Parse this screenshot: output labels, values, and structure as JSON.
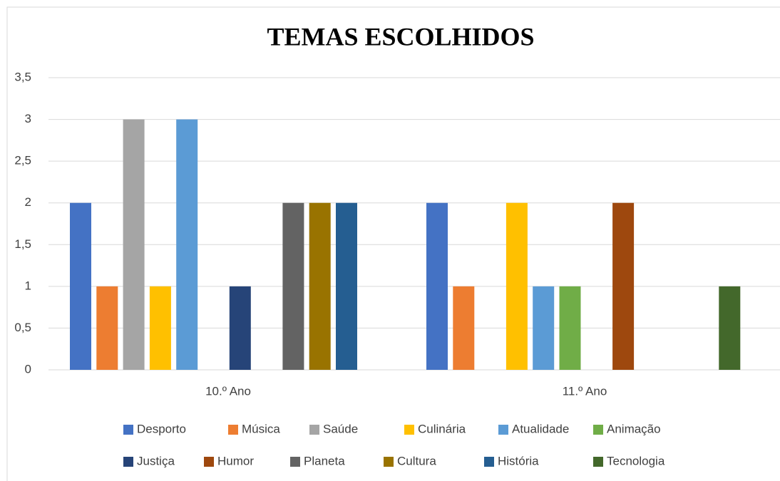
{
  "chart_data": {
    "type": "bar",
    "title": "TEMAS ESCOLHIDOS",
    "categories": [
      "10.º Ano",
      "11.º Ano"
    ],
    "series": [
      {
        "name": "Desporto",
        "color": "#4472c4",
        "values": [
          2,
          2
        ]
      },
      {
        "name": "Música",
        "color": "#ed7d31",
        "values": [
          1,
          1
        ]
      },
      {
        "name": "Saúde",
        "color": "#a5a5a5",
        "values": [
          3,
          0
        ]
      },
      {
        "name": "Culinária",
        "color": "#ffc000",
        "values": [
          1,
          2
        ]
      },
      {
        "name": "Atualidade",
        "color": "#5b9bd5",
        "values": [
          3,
          1
        ]
      },
      {
        "name": "Animação",
        "color": "#70ad47",
        "values": [
          0,
          1
        ]
      },
      {
        "name": "Justiça",
        "color": "#264478",
        "values": [
          1,
          0
        ]
      },
      {
        "name": "Humor",
        "color": "#9e480e",
        "values": [
          0,
          2
        ]
      },
      {
        "name": "Planeta",
        "color": "#636363",
        "values": [
          2,
          0
        ]
      },
      {
        "name": "Cultura",
        "color": "#997300",
        "values": [
          2,
          0
        ]
      },
      {
        "name": "História",
        "color": "#255e91",
        "values": [
          2,
          0
        ]
      },
      {
        "name": "Tecnologia",
        "color": "#43682b",
        "values": [
          0,
          1
        ]
      }
    ],
    "ylim": [
      0,
      3.5
    ],
    "yticks": [
      0,
      {
        "value": 0.5,
        "label": "0,5"
      },
      1,
      {
        "value": 1.5,
        "label": "1,5"
      },
      2,
      {
        "value": 2.5,
        "label": "2,5"
      },
      3,
      {
        "value": 3.5,
        "label": "3,5"
      }
    ],
    "grid": true,
    "legend": "bottom"
  }
}
